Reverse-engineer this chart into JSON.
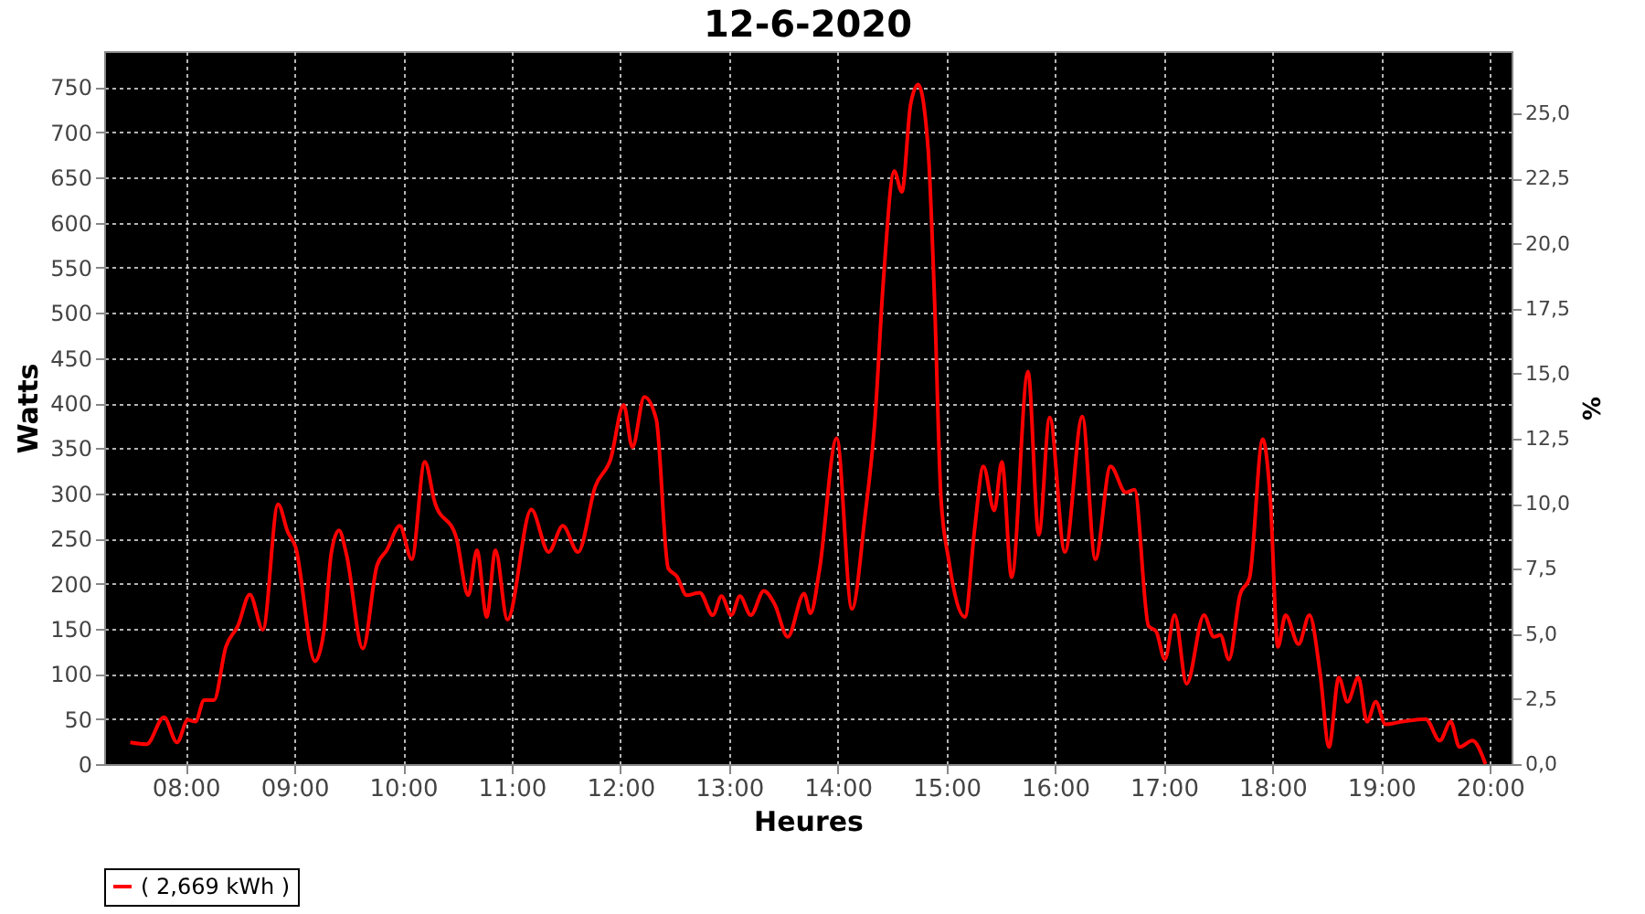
{
  "chart_data": {
    "type": "line",
    "title": "12-6-2020",
    "xlabel": "Heures",
    "ylabel": "Watts",
    "y2label": "%",
    "xlim": [
      7.25,
      20.2
    ],
    "ylim": [
      0,
      790
    ],
    "y2lim": [
      0,
      27.4
    ],
    "xticks": [
      {
        "value": 8,
        "label": "08:00"
      },
      {
        "value": 9,
        "label": "09:00"
      },
      {
        "value": 10,
        "label": "10:00"
      },
      {
        "value": 11,
        "label": "11:00"
      },
      {
        "value": 12,
        "label": "12:00"
      },
      {
        "value": 13,
        "label": "13:00"
      },
      {
        "value": 14,
        "label": "14:00"
      },
      {
        "value": 15,
        "label": "15:00"
      },
      {
        "value": 16,
        "label": "16:00"
      },
      {
        "value": 17,
        "label": "17:00"
      },
      {
        "value": 18,
        "label": "18:00"
      },
      {
        "value": 19,
        "label": "19:00"
      },
      {
        "value": 20,
        "label": "20:00"
      }
    ],
    "yticks": [
      0,
      50,
      100,
      150,
      200,
      250,
      300,
      350,
      400,
      450,
      500,
      550,
      600,
      650,
      700,
      750
    ],
    "y2ticks": [
      {
        "value": 0,
        "label": "0,0"
      },
      {
        "value": 2.5,
        "label": "2,5"
      },
      {
        "value": 5,
        "label": "5,0"
      },
      {
        "value": 7.5,
        "label": "7,5"
      },
      {
        "value": 10,
        "label": "10,0"
      },
      {
        "value": 12.5,
        "label": "12,5"
      },
      {
        "value": 15,
        "label": "15,0"
      },
      {
        "value": 17.5,
        "label": "17,5"
      },
      {
        "value": 20,
        "label": "20,0"
      },
      {
        "value": 22.5,
        "label": "22,5"
      },
      {
        "value": 25,
        "label": "25,0"
      }
    ],
    "grid": true,
    "legend": "bottom",
    "line_style": "solid",
    "marker": "none",
    "series": [
      {
        "name": "( 2,669 kWh )",
        "color": "#ff0000",
        "x": [
          7.49,
          7.64,
          7.8,
          7.92,
          8.02,
          8.09,
          8.17,
          8.26,
          8.37,
          8.48,
          8.59,
          8.71,
          8.85,
          8.94,
          9.01,
          9.19,
          9.27,
          9.34,
          9.41,
          9.48,
          9.63,
          9.76,
          9.85,
          9.97,
          10.08,
          10.2,
          10.29,
          10.49,
          10.6,
          10.68,
          10.77,
          10.85,
          10.96,
          11.18,
          11.34,
          11.47,
          11.61,
          11.77,
          11.91,
          12.03,
          12.11,
          12.22,
          12.33,
          12.44,
          12.52,
          12.61,
          12.73,
          12.85,
          12.93,
          13.02,
          13.1,
          13.2,
          13.32,
          13.42,
          13.54,
          13.69,
          13.75,
          13.83,
          13.99,
          14.13,
          14.25,
          14.34,
          14.42,
          14.52,
          14.59,
          14.67,
          14.74,
          14.83,
          14.89,
          14.95,
          15.02,
          15.17,
          15.26,
          15.34,
          15.44,
          15.51,
          15.6,
          15.75,
          15.85,
          15.95,
          16.09,
          16.25,
          16.37,
          16.51,
          16.65,
          16.73,
          16.86,
          16.93,
          17.01,
          17.1,
          17.21,
          17.37,
          17.46,
          17.52,
          17.6,
          17.7,
          17.79,
          17.91,
          17.98,
          18.05,
          18.12,
          18.24,
          18.34,
          18.44,
          18.52,
          18.61,
          18.69,
          18.79,
          18.87,
          18.95,
          19.04,
          19.19,
          19.41,
          19.54,
          19.64,
          19.72,
          19.84,
          19.96
        ],
        "values": [
          24,
          22,
          52,
          24,
          49,
          47,
          71,
          71,
          130,
          153,
          188,
          149,
          288,
          257,
          241,
          114,
          146,
          234,
          259,
          232,
          128,
          220,
          237,
          264,
          227,
          335,
          291,
          251,
          187,
          237,
          163,
          237,
          160,
          282,
          235,
          264,
          235,
          308,
          338,
          398,
          351,
          407,
          382,
          217,
          208,
          187,
          190,
          165,
          186,
          165,
          186,
          165,
          192,
          177,
          141,
          189,
          167,
          214,
          361,
          172,
          274,
          378,
          536,
          657,
          634,
          731,
          753,
          684,
          516,
          294,
          227,
          163,
          261,
          330,
          281,
          335,
          207,
          435,
          254,
          384,
          235,
          385,
          227,
          330,
          301,
          304,
          153,
          147,
          116,
          165,
          89,
          165,
          141,
          143,
          116,
          187,
          207,
          360,
          294,
          130,
          165,
          133,
          165,
          99,
          19,
          96,
          69,
          96,
          47,
          69,
          44,
          47,
          50,
          26,
          47,
          19,
          26,
          0
        ]
      }
    ]
  }
}
